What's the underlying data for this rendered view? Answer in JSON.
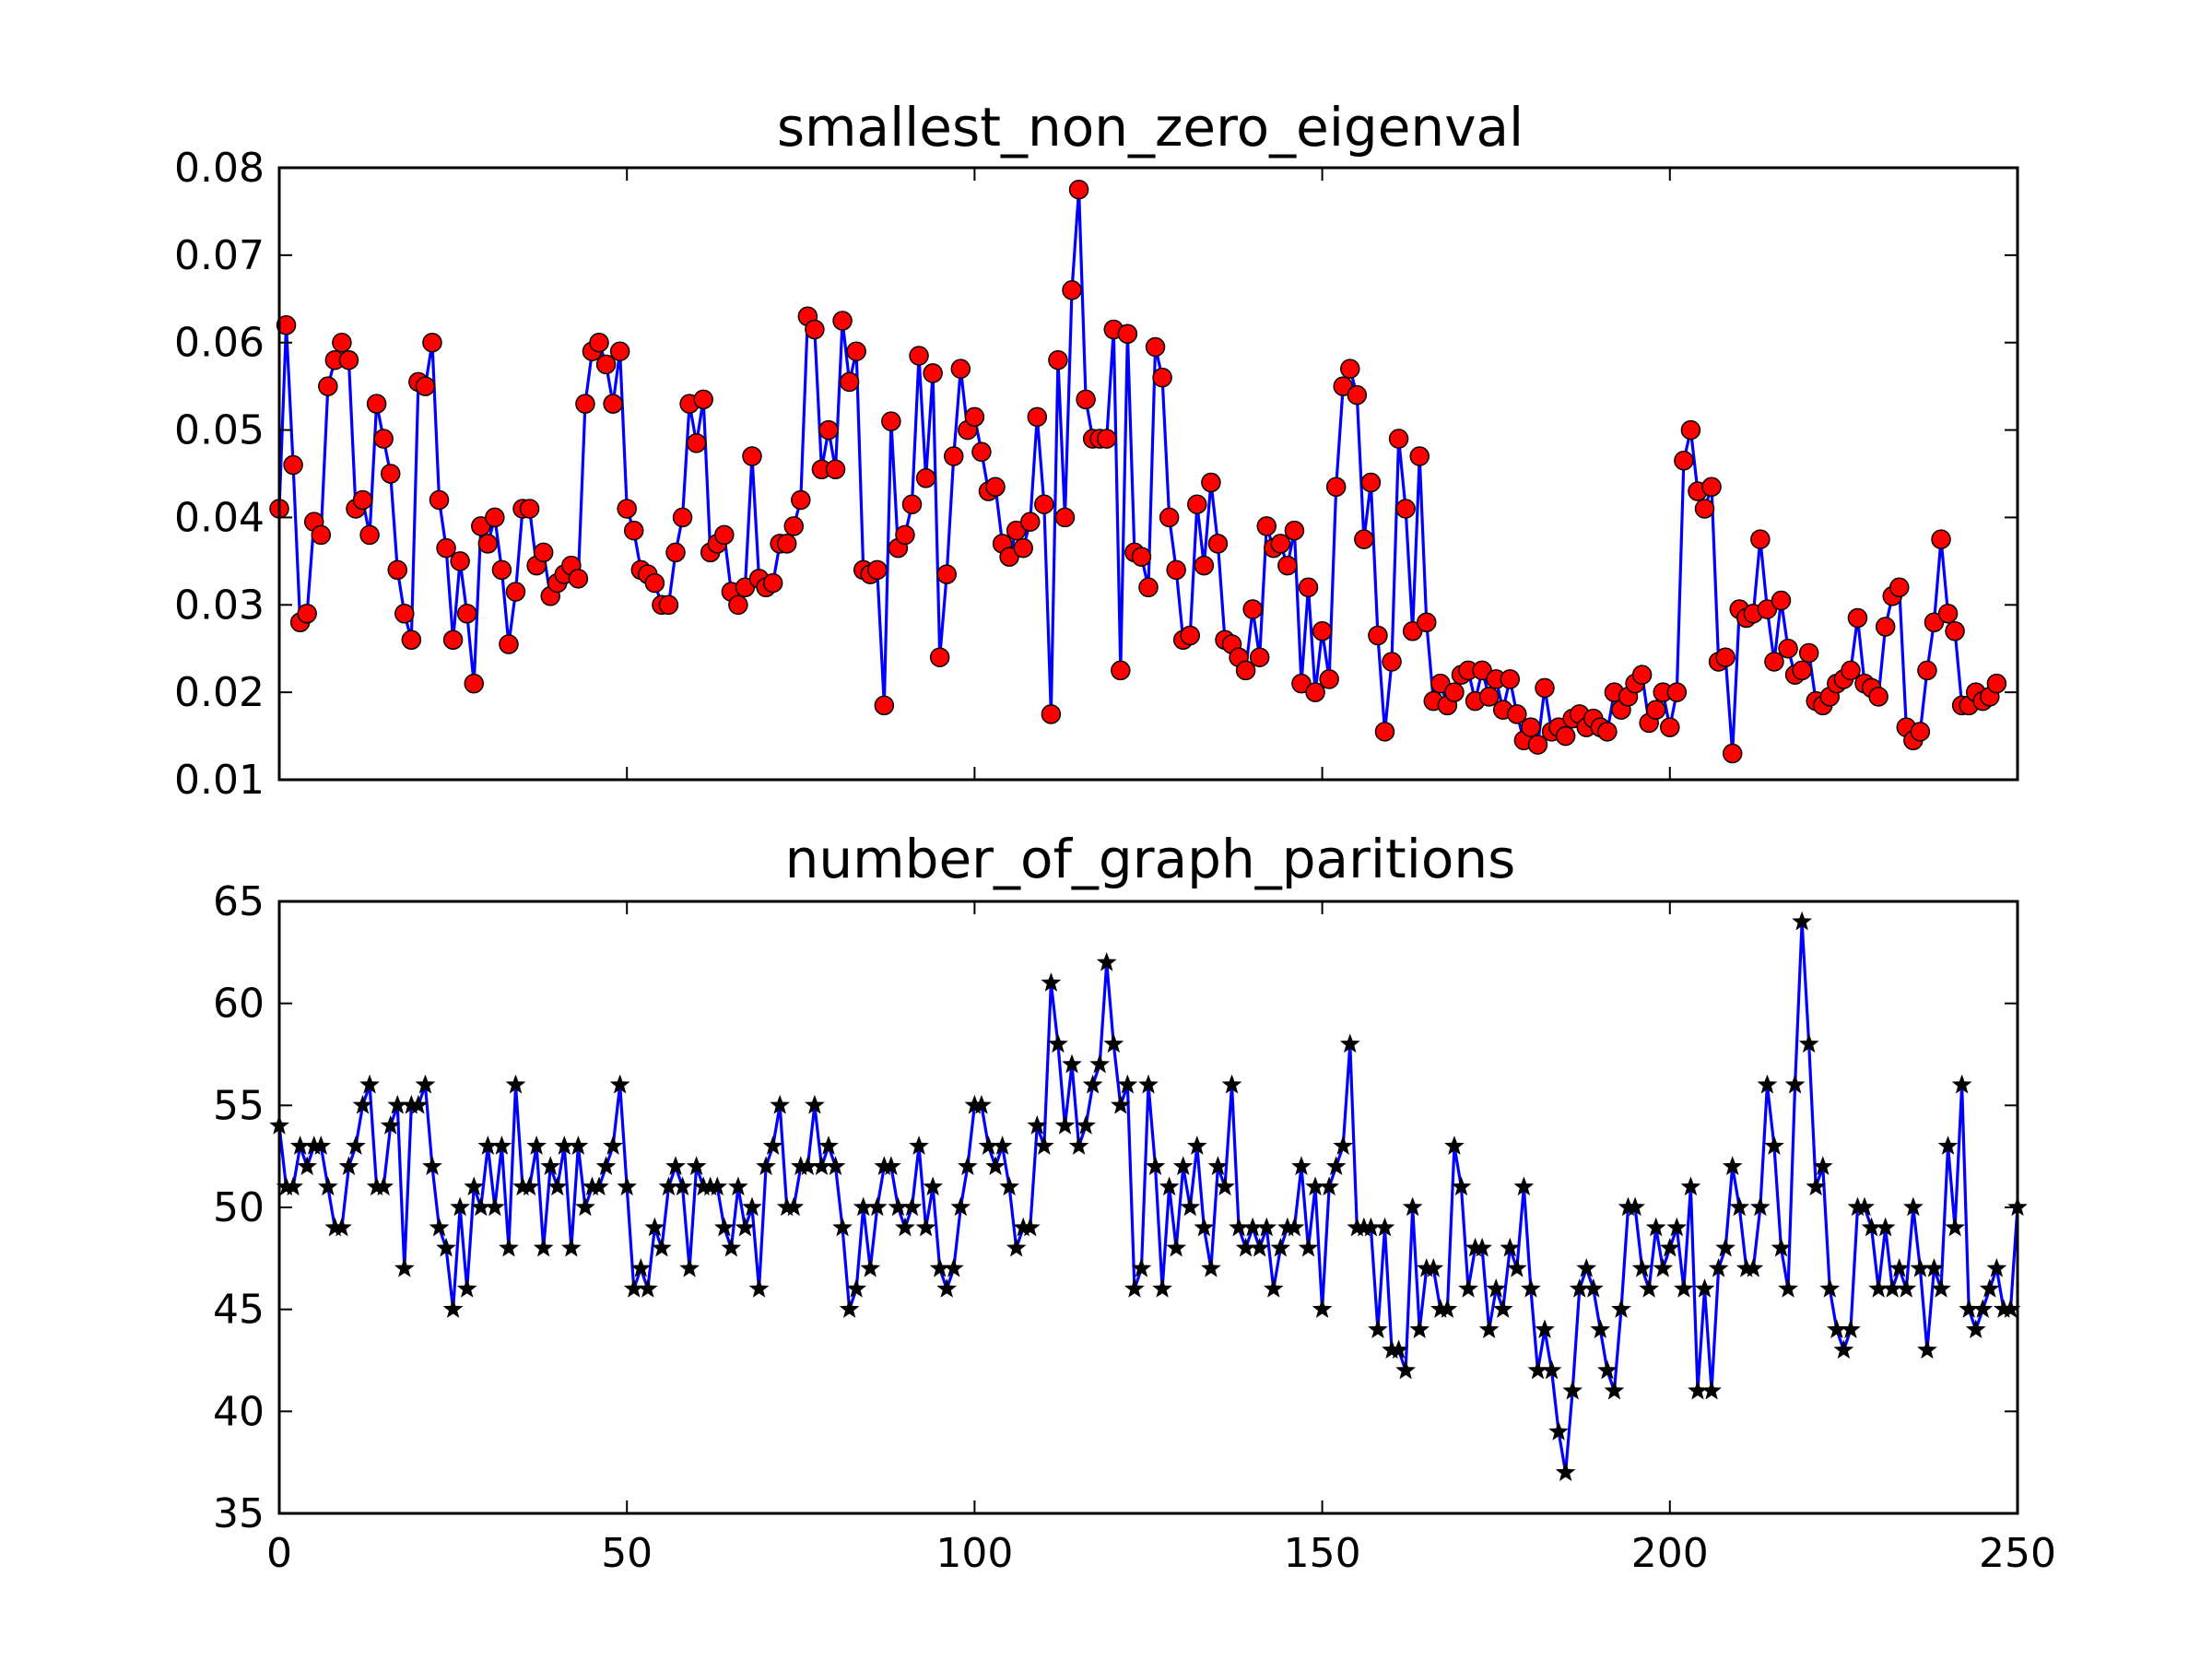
{
  "chart_data": [
    {
      "type": "line",
      "title": "smallest_non_zero_eigenval",
      "xlabel": "",
      "ylabel": "",
      "xlim": [
        0,
        250
      ],
      "ylim": [
        0.01,
        0.08
      ],
      "xticks": [
        0,
        50,
        100,
        150,
        200,
        250
      ],
      "xtick_labels": [
        "",
        "",
        "",
        "",
        "",
        ""
      ],
      "yticks": [
        0.01,
        0.02,
        0.03,
        0.04,
        0.05,
        0.06,
        0.07,
        0.08
      ],
      "ytick_labels": [
        "0.01",
        "0.02",
        "0.03",
        "0.04",
        "0.05",
        "0.06",
        "0.07",
        "0.08"
      ],
      "line_color": "#0000ff",
      "marker": "circle",
      "marker_color": "#ff0000",
      "grid": false,
      "x": "0..247",
      "series": [
        {
          "values": [
            0.041,
            0.062,
            0.046,
            0.028,
            0.029,
            0.0395,
            0.038,
            0.055,
            0.058,
            0.06,
            0.058,
            0.041,
            0.042,
            0.038,
            0.053,
            0.049,
            0.045,
            0.034,
            0.029,
            0.026,
            0.0555,
            0.055,
            0.06,
            0.042,
            0.0365,
            0.026,
            0.035,
            0.029,
            0.021,
            0.039,
            0.037,
            0.04,
            0.034,
            0.0255,
            0.0315,
            0.041,
            0.041,
            0.0345,
            0.036,
            0.031,
            0.0325,
            0.0335,
            0.0345,
            0.033,
            0.053,
            0.059,
            0.06,
            0.0575,
            0.053,
            0.059,
            0.041,
            0.0385,
            0.034,
            0.0335,
            0.0325,
            0.03,
            0.03,
            0.036,
            0.04,
            0.053,
            0.0485,
            0.0535,
            0.036,
            0.037,
            0.038,
            0.0315,
            0.03,
            0.032,
            0.047,
            0.033,
            0.032,
            0.0325,
            0.037,
            0.037,
            0.039,
            0.042,
            0.063,
            0.0615,
            0.0455,
            0.05,
            0.0455,
            0.0625,
            0.0555,
            0.059,
            0.034,
            0.0335,
            0.034,
            0.0185,
            0.051,
            0.0365,
            0.038,
            0.0415,
            0.0585,
            0.0445,
            0.0565,
            0.024,
            0.0335,
            0.047,
            0.057,
            0.05,
            0.0515,
            0.0475,
            0.043,
            0.0435,
            0.037,
            0.0355,
            0.0385,
            0.0365,
            0.0395,
            0.0515,
            0.0415,
            0.0175,
            0.058,
            0.04,
            0.066,
            0.0775,
            0.0535,
            0.049,
            0.049,
            0.049,
            0.0615,
            0.0225,
            0.061,
            0.036,
            0.0355,
            0.032,
            0.0595,
            0.056,
            0.04,
            0.034,
            0.026,
            0.0265,
            0.0415,
            0.0345,
            0.044,
            0.037,
            0.026,
            0.0255,
            0.024,
            0.0225,
            0.0295,
            0.024,
            0.039,
            0.0365,
            0.037,
            0.0345,
            0.0385,
            0.021,
            0.032,
            0.02,
            0.027,
            0.0215,
            0.0435,
            0.055,
            0.057,
            0.054,
            0.0375,
            0.044,
            0.0265,
            0.0155,
            0.0235,
            0.049,
            0.041,
            0.027,
            0.047,
            0.028,
            0.019,
            0.021,
            0.0185,
            0.02,
            0.022,
            0.0225,
            0.019,
            0.0225,
            0.0195,
            0.0215,
            0.018,
            0.0215,
            0.0175,
            0.0145,
            0.016,
            0.014,
            0.0205,
            0.0155,
            0.016,
            0.015,
            0.017,
            0.0175,
            0.016,
            0.017,
            0.016,
            0.0155,
            0.02,
            0.018,
            0.0195,
            0.021,
            0.022,
            0.0165,
            0.018,
            0.02,
            0.016,
            0.02,
            0.0465,
            0.05,
            0.043,
            0.041,
            0.0435,
            0.0235,
            0.024,
            0.013,
            0.0295,
            0.0285,
            0.029,
            0.0375,
            0.0295,
            0.0235,
            0.0305,
            0.025,
            0.022,
            0.0225,
            0.0245,
            0.019,
            0.0185,
            0.0195,
            0.021,
            0.0215,
            0.0225,
            0.0285,
            0.021,
            0.0205,
            0.0195,
            0.0275,
            0.031,
            0.032,
            0.016,
            0.0145,
            0.0155,
            0.0225,
            0.028,
            0.0375,
            0.029,
            0.027,
            0.0185,
            0.0185,
            0.02,
            0.019,
            0.0195,
            0.021
          ]
        }
      ]
    },
    {
      "type": "line",
      "title": "number_of_graph_paritions",
      "xlabel": "",
      "ylabel": "",
      "xlim": [
        0,
        250
      ],
      "ylim": [
        35,
        65
      ],
      "xticks": [
        0,
        50,
        100,
        150,
        200,
        250
      ],
      "xtick_labels": [
        "0",
        "50",
        "100",
        "150",
        "200",
        "250"
      ],
      "yticks": [
        35,
        40,
        45,
        50,
        55,
        60,
        65
      ],
      "ytick_labels": [
        "35",
        "40",
        "45",
        "50",
        "55",
        "60",
        "65"
      ],
      "line_color": "#0000ff",
      "marker": "star",
      "marker_color": "#000000",
      "grid": false,
      "x": "0..247",
      "series": [
        {
          "values": [
            54,
            51,
            51,
            53,
            52,
            53,
            53,
            51,
            49,
            49,
            52,
            53,
            55,
            56,
            51,
            51,
            54,
            55,
            47,
            55,
            55,
            56,
            52,
            49,
            48,
            45,
            50,
            46,
            51,
            50,
            53,
            50,
            53,
            48,
            56,
            51,
            51,
            53,
            48,
            52,
            51,
            53,
            48,
            53,
            50,
            51,
            51,
            52,
            53,
            56,
            51,
            46,
            47,
            46,
            49,
            48,
            51,
            52,
            51,
            47,
            52,
            51,
            51,
            51,
            49,
            48,
            51,
            49,
            50,
            46,
            52,
            53,
            55,
            50,
            50,
            52,
            52,
            55,
            52,
            53,
            52,
            49,
            45,
            46,
            50,
            47,
            50,
            52,
            52,
            50,
            49,
            50,
            53,
            49,
            51,
            47,
            46,
            47,
            50,
            52,
            55,
            55,
            53,
            52,
            53,
            51,
            48,
            49,
            49,
            54,
            53,
            61,
            58,
            54,
            57,
            53,
            54,
            56,
            57,
            62,
            58,
            55,
            56,
            46,
            47,
            56,
            52,
            46,
            51,
            48,
            52,
            50,
            53,
            49,
            47,
            52,
            51,
            56,
            49,
            48,
            49,
            48,
            49,
            46,
            48,
            49,
            49,
            52,
            48,
            51,
            45,
            51,
            52,
            53,
            58,
            49,
            49,
            49,
            44,
            49,
            43,
            43,
            42,
            50,
            44,
            47,
            47,
            45,
            45,
            53,
            51,
            46,
            48,
            48,
            44,
            46,
            45,
            48,
            47,
            51,
            46,
            42,
            44,
            42,
            39,
            37,
            41,
            46,
            47,
            46,
            44,
            42,
            41,
            45,
            50,
            50,
            47,
            46,
            49,
            47,
            48,
            49,
            46,
            51,
            41,
            46,
            41,
            47,
            48,
            52,
            50,
            47,
            47,
            50,
            56,
            53,
            48,
            46,
            56,
            64,
            58,
            51,
            52,
            46,
            44,
            43,
            44,
            50,
            50,
            49,
            46,
            49,
            46,
            47,
            46,
            50,
            47,
            43,
            47,
            46,
            53,
            49,
            56,
            45,
            44,
            45,
            46,
            47,
            45,
            45,
            50
          ]
        }
      ]
    }
  ]
}
